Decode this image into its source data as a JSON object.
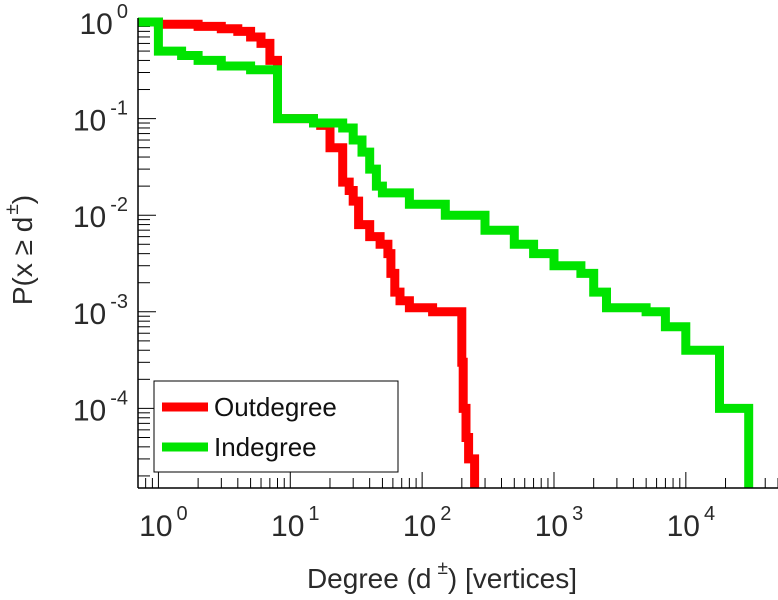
{
  "chart_data": {
    "type": "line",
    "scale": {
      "x": "log",
      "y": "log"
    },
    "xlim": [
      0.7,
      50000
    ],
    "ylim": [
      1.5e-05,
      1.1
    ],
    "x_ticks": [
      {
        "base": "10",
        "exp": "0",
        "value": 1
      },
      {
        "base": "10",
        "exp": "1",
        "value": 10
      },
      {
        "base": "10",
        "exp": "2",
        "value": 100
      },
      {
        "base": "10",
        "exp": "3",
        "value": 1000
      },
      {
        "base": "10",
        "exp": "4",
        "value": 10000
      }
    ],
    "y_ticks": [
      {
        "base": "10",
        "exp": "0",
        "value": 1
      },
      {
        "base": "10",
        "exp": "-1",
        "value": 0.1
      },
      {
        "base": "10",
        "exp": "-2",
        "value": 0.01
      },
      {
        "base": "10",
        "exp": "-3",
        "value": 0.001
      },
      {
        "base": "10",
        "exp": "-4",
        "value": 0.0001
      }
    ],
    "xlabel": {
      "main": "Degree (d",
      "sup": "±",
      "tail": ") [vertices]"
    },
    "ylabel": {
      "main": "P(x ≥ d",
      "sup": "±",
      "tail": ")"
    },
    "legend": {
      "position": "bottom-left"
    },
    "series": [
      {
        "name": "Outdegree",
        "color": "#ff0000",
        "points": [
          [
            0.7,
            1.0
          ],
          [
            1.0,
            1.0
          ],
          [
            1.0,
            0.95
          ],
          [
            2.0,
            0.95
          ],
          [
            2.0,
            0.9
          ],
          [
            3.0,
            0.9
          ],
          [
            3.0,
            0.85
          ],
          [
            4.0,
            0.85
          ],
          [
            4.0,
            0.8
          ],
          [
            5.0,
            0.8
          ],
          [
            5.0,
            0.7
          ],
          [
            6.0,
            0.7
          ],
          [
            6.0,
            0.6
          ],
          [
            7.0,
            0.6
          ],
          [
            7.0,
            0.4
          ],
          [
            8.0,
            0.4
          ],
          [
            8.0,
            0.1
          ],
          [
            15.0,
            0.1
          ],
          [
            15.0,
            0.09
          ],
          [
            17.0,
            0.09
          ],
          [
            17.0,
            0.085
          ],
          [
            20.0,
            0.085
          ],
          [
            20.0,
            0.05
          ],
          [
            25.0,
            0.05
          ],
          [
            25.0,
            0.022
          ],
          [
            28.0,
            0.022
          ],
          [
            28.0,
            0.018
          ],
          [
            30.0,
            0.018
          ],
          [
            30.0,
            0.014
          ],
          [
            33.0,
            0.014
          ],
          [
            33.0,
            0.008
          ],
          [
            40.0,
            0.008
          ],
          [
            40.0,
            0.006
          ],
          [
            48.0,
            0.006
          ],
          [
            48.0,
            0.005
          ],
          [
            55.0,
            0.005
          ],
          [
            55.0,
            0.004
          ],
          [
            58.0,
            0.004
          ],
          [
            58.0,
            0.0025
          ],
          [
            62.0,
            0.0025
          ],
          [
            62.0,
            0.0016
          ],
          [
            68.0,
            0.0016
          ],
          [
            68.0,
            0.0013
          ],
          [
            80.0,
            0.0013
          ],
          [
            80.0,
            0.0011
          ],
          [
            120.0,
            0.0011
          ],
          [
            120.0,
            0.001
          ],
          [
            200.0,
            0.001
          ],
          [
            200.0,
            0.0003
          ],
          [
            205.0,
            0.0003
          ],
          [
            205.0,
            0.0001
          ],
          [
            215.0,
            0.0001
          ],
          [
            215.0,
            5e-05
          ],
          [
            225.0,
            5e-05
          ],
          [
            225.0,
            3e-05
          ],
          [
            250.0,
            3e-05
          ],
          [
            250.0,
            1.5e-05
          ]
        ]
      },
      {
        "name": "Indegree",
        "color": "#00e400",
        "points": [
          [
            0.7,
            1.0
          ],
          [
            1.0,
            1.0
          ],
          [
            1.0,
            0.5
          ],
          [
            1.5,
            0.5
          ],
          [
            1.5,
            0.45
          ],
          [
            2.0,
            0.45
          ],
          [
            2.0,
            0.4
          ],
          [
            3.0,
            0.4
          ],
          [
            3.0,
            0.35
          ],
          [
            5.0,
            0.35
          ],
          [
            5.0,
            0.32
          ],
          [
            8.0,
            0.32
          ],
          [
            8.0,
            0.1
          ],
          [
            15.0,
            0.1
          ],
          [
            15.0,
            0.09
          ],
          [
            25.0,
            0.09
          ],
          [
            25.0,
            0.08
          ],
          [
            30.0,
            0.08
          ],
          [
            30.0,
            0.06
          ],
          [
            35.0,
            0.06
          ],
          [
            35.0,
            0.045
          ],
          [
            40.0,
            0.045
          ],
          [
            40.0,
            0.03
          ],
          [
            45.0,
            0.03
          ],
          [
            45.0,
            0.02
          ],
          [
            50.0,
            0.02
          ],
          [
            50.0,
            0.017
          ],
          [
            80.0,
            0.017
          ],
          [
            80.0,
            0.013
          ],
          [
            150.0,
            0.013
          ],
          [
            150.0,
            0.01
          ],
          [
            300.0,
            0.01
          ],
          [
            300.0,
            0.007
          ],
          [
            500.0,
            0.007
          ],
          [
            500.0,
            0.005
          ],
          [
            700.0,
            0.005
          ],
          [
            700.0,
            0.004
          ],
          [
            1000.0,
            0.004
          ],
          [
            1000.0,
            0.003
          ],
          [
            1600.0,
            0.003
          ],
          [
            1600.0,
            0.0025
          ],
          [
            2000.0,
            0.0025
          ],
          [
            2000.0,
            0.0016
          ],
          [
            2500.0,
            0.0016
          ],
          [
            2500.0,
            0.0011
          ],
          [
            5000.0,
            0.0011
          ],
          [
            5000.0,
            0.001
          ],
          [
            7000.0,
            0.001
          ],
          [
            7000.0,
            0.0007
          ],
          [
            10000.0,
            0.0007
          ],
          [
            10000.0,
            0.0004
          ],
          [
            18000.0,
            0.0004
          ],
          [
            18000.0,
            0.0001
          ],
          [
            30000.0,
            0.0001
          ],
          [
            30000.0,
            1.5e-05
          ]
        ]
      }
    ]
  }
}
